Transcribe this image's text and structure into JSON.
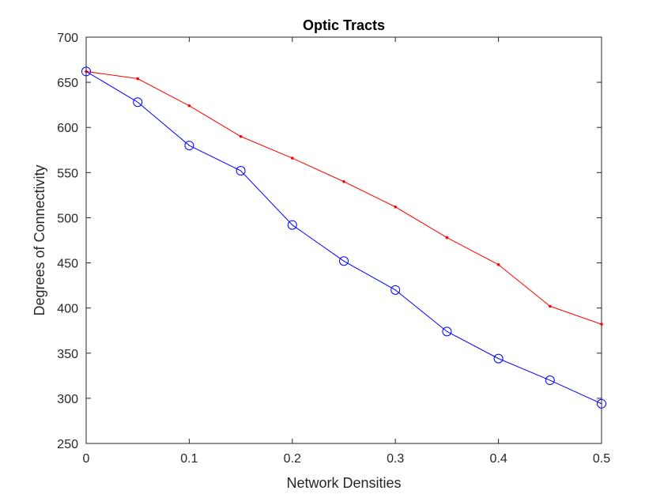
{
  "chart_data": {
    "type": "line",
    "title": "Optic Tracts",
    "xlabel": "Network Densities",
    "ylabel": "Degrees of Connectivity",
    "xlim": [
      0,
      0.5
    ],
    "ylim": [
      250,
      700
    ],
    "x_ticks": [
      0,
      0.1,
      0.2,
      0.3,
      0.4,
      0.5
    ],
    "x_tick_labels": [
      "0",
      "0.1",
      "0.2",
      "0.3",
      "0.4",
      "0.5"
    ],
    "y_ticks": [
      250,
      300,
      350,
      400,
      450,
      500,
      550,
      600,
      650,
      700
    ],
    "y_tick_labels": [
      "250",
      "300",
      "350",
      "400",
      "450",
      "500",
      "550",
      "600",
      "650",
      "700"
    ],
    "grid": false,
    "legend": "none",
    "x": [
      0,
      0.05,
      0.1,
      0.15,
      0.2,
      0.25,
      0.3,
      0.35,
      0.4,
      0.45,
      0.5
    ],
    "series": [
      {
        "color": "#ff0000",
        "marker": "dot",
        "values": [
          662,
          654,
          624,
          590,
          566,
          540,
          512,
          478,
          448,
          402,
          382
        ]
      },
      {
        "color": "#0000ff",
        "marker": "circle",
        "values": [
          662,
          628,
          580,
          552,
          492,
          452,
          420,
          374,
          344,
          320,
          294
        ]
      }
    ]
  }
}
